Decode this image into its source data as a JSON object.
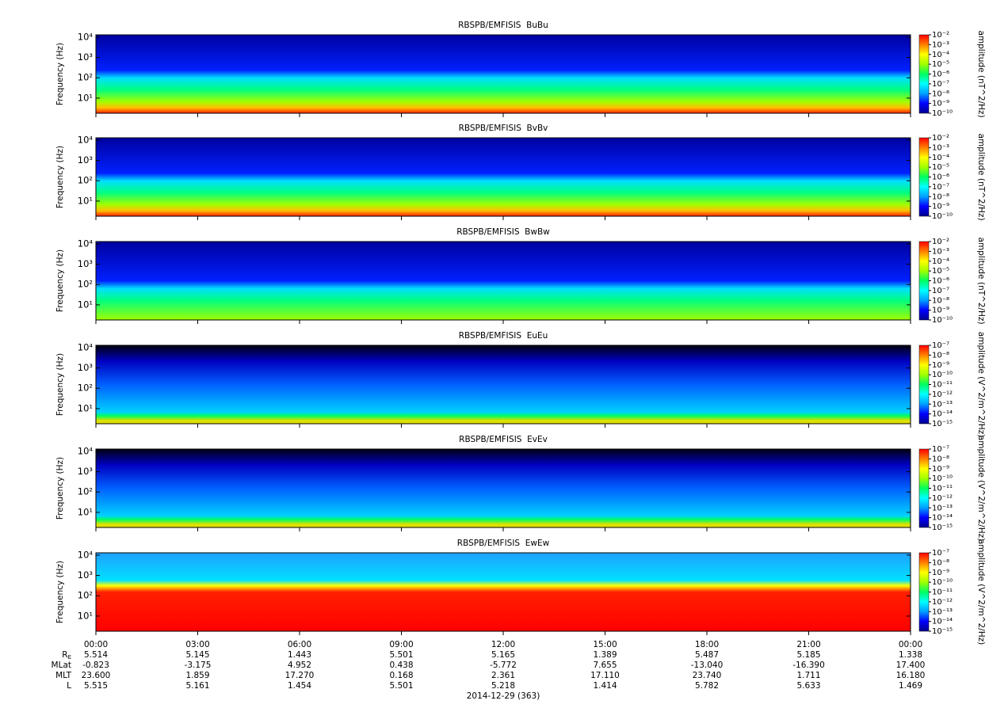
{
  "chart_data": [
    {
      "type": "spectrogram",
      "title": "RBSPB/EMFISIS  BuBu",
      "ylabel": "Frequency (Hz)",
      "log": true,
      "ylim": [
        1.8,
        13000
      ],
      "yticks": [
        {
          "value": 10,
          "label": "10¹"
        },
        {
          "value": 100,
          "label": "10²"
        },
        {
          "value": 1000,
          "label": "10³"
        },
        {
          "value": 10000,
          "label": "10⁴"
        }
      ],
      "colorbar_label": "amplitude (nT^2/Hz)",
      "clim": [
        1e-10,
        0.01
      ],
      "cticks": [
        {
          "value": 1e-10,
          "label": "10⁻¹⁰"
        },
        {
          "value": 1e-09,
          "label": "10⁻⁹"
        },
        {
          "value": 1e-08,
          "label": "10⁻⁸"
        },
        {
          "value": 1e-07,
          "label": "10⁻⁷"
        },
        {
          "value": 1e-06,
          "label": "10⁻⁶"
        },
        {
          "value": 1e-05,
          "label": "10⁻⁵"
        },
        {
          "value": 0.0001,
          "label": "10⁻⁴"
        },
        {
          "value": 0.001,
          "label": "10⁻³"
        },
        {
          "value": 0.01,
          "label": "10⁻²"
        }
      ]
    },
    {
      "type": "spectrogram",
      "title": "RBSPB/EMFISIS  BvBv",
      "ylabel": "Frequency (Hz)",
      "log": true,
      "ylim": [
        1.8,
        13000
      ],
      "yticks": [
        {
          "value": 10,
          "label": "10¹"
        },
        {
          "value": 100,
          "label": "10²"
        },
        {
          "value": 1000,
          "label": "10³"
        },
        {
          "value": 10000,
          "label": "10⁴"
        }
      ],
      "colorbar_label": "amplitude (nT^2/Hz)",
      "clim": [
        1e-10,
        0.01
      ],
      "cticks": [
        {
          "value": 1e-10,
          "label": "10⁻¹⁰"
        },
        {
          "value": 1e-09,
          "label": "10⁻⁹"
        },
        {
          "value": 1e-08,
          "label": "10⁻⁸"
        },
        {
          "value": 1e-07,
          "label": "10⁻⁷"
        },
        {
          "value": 1e-06,
          "label": "10⁻⁶"
        },
        {
          "value": 1e-05,
          "label": "10⁻⁵"
        },
        {
          "value": 0.0001,
          "label": "10⁻⁴"
        },
        {
          "value": 0.001,
          "label": "10⁻³"
        },
        {
          "value": 0.01,
          "label": "10⁻²"
        }
      ]
    },
    {
      "type": "spectrogram",
      "title": "RBSPB/EMFISIS  BwBw",
      "ylabel": "Frequency (Hz)",
      "log": true,
      "ylim": [
        1.8,
        13000
      ],
      "yticks": [
        {
          "value": 10,
          "label": "10¹"
        },
        {
          "value": 100,
          "label": "10²"
        },
        {
          "value": 1000,
          "label": "10³"
        },
        {
          "value": 10000,
          "label": "10⁴"
        }
      ],
      "colorbar_label": "amplitude (nT^2/Hz)",
      "clim": [
        1e-10,
        0.01
      ],
      "cticks": [
        {
          "value": 1e-10,
          "label": "10⁻¹⁰"
        },
        {
          "value": 1e-09,
          "label": "10⁻⁹"
        },
        {
          "value": 1e-08,
          "label": "10⁻⁸"
        },
        {
          "value": 1e-07,
          "label": "10⁻⁷"
        },
        {
          "value": 1e-06,
          "label": "10⁻⁶"
        },
        {
          "value": 1e-05,
          "label": "10⁻⁵"
        },
        {
          "value": 0.0001,
          "label": "10⁻⁴"
        },
        {
          "value": 0.001,
          "label": "10⁻³"
        },
        {
          "value": 0.01,
          "label": "10⁻²"
        }
      ]
    },
    {
      "type": "spectrogram",
      "title": "RBSPB/EMFISIS  EuEu",
      "ylabel": "Frequency (Hz)",
      "log": true,
      "ylim": [
        1.8,
        13000
      ],
      "yticks": [
        {
          "value": 10,
          "label": "10¹"
        },
        {
          "value": 100,
          "label": "10²"
        },
        {
          "value": 1000,
          "label": "10³"
        },
        {
          "value": 10000,
          "label": "10⁴"
        }
      ],
      "colorbar_label": "amplitude (V^2/m^2/Hz)",
      "clim": [
        1e-15,
        1e-07
      ],
      "cticks": [
        {
          "value": 1e-15,
          "label": "10⁻¹⁵"
        },
        {
          "value": 1e-14,
          "label": "10⁻¹⁴"
        },
        {
          "value": 1e-13,
          "label": "10⁻¹³"
        },
        {
          "value": 1e-12,
          "label": "10⁻¹²"
        },
        {
          "value": 1e-11,
          "label": "10⁻¹¹"
        },
        {
          "value": 1e-10,
          "label": "10⁻¹⁰"
        },
        {
          "value": 1e-09,
          "label": "10⁻⁹"
        },
        {
          "value": 1e-08,
          "label": "10⁻⁸"
        },
        {
          "value": 1e-07,
          "label": "10⁻⁷"
        }
      ]
    },
    {
      "type": "spectrogram",
      "title": "RBSPB/EMFISIS  EvEv",
      "ylabel": "Frequency (Hz)",
      "log": true,
      "ylim": [
        1.8,
        13000
      ],
      "yticks": [
        {
          "value": 10,
          "label": "10¹"
        },
        {
          "value": 100,
          "label": "10²"
        },
        {
          "value": 1000,
          "label": "10³"
        },
        {
          "value": 10000,
          "label": "10⁴"
        }
      ],
      "colorbar_label": "amplitude (V^2/m^2/Hz)",
      "clim": [
        1e-15,
        1e-07
      ],
      "cticks": [
        {
          "value": 1e-15,
          "label": "10⁻¹⁵"
        },
        {
          "value": 1e-14,
          "label": "10⁻¹⁴"
        },
        {
          "value": 1e-13,
          "label": "10⁻¹³"
        },
        {
          "value": 1e-12,
          "label": "10⁻¹²"
        },
        {
          "value": 1e-11,
          "label": "10⁻¹¹"
        },
        {
          "value": 1e-10,
          "label": "10⁻¹⁰"
        },
        {
          "value": 1e-09,
          "label": "10⁻⁹"
        },
        {
          "value": 1e-08,
          "label": "10⁻⁸"
        },
        {
          "value": 1e-07,
          "label": "10⁻⁷"
        }
      ]
    },
    {
      "type": "spectrogram",
      "title": "RBSPB/EMFISIS  EwEw",
      "ylabel": "Frequency (Hz)",
      "log": true,
      "ylim": [
        1.8,
        13000
      ],
      "yticks": [
        {
          "value": 10,
          "label": "10¹"
        },
        {
          "value": 100,
          "label": "10²"
        },
        {
          "value": 1000,
          "label": "10³"
        },
        {
          "value": 10000,
          "label": "10⁴"
        }
      ],
      "colorbar_label": "amplitude (V^2/m^2/Hz)",
      "clim": [
        1e-15,
        1e-07
      ],
      "cticks": [
        {
          "value": 1e-15,
          "label": "10⁻¹⁵"
        },
        {
          "value": 1e-14,
          "label": "10⁻¹⁴"
        },
        {
          "value": 1e-13,
          "label": "10⁻¹³"
        },
        {
          "value": 1e-12,
          "label": "10⁻¹²"
        },
        {
          "value": 1e-11,
          "label": "10⁻¹¹"
        },
        {
          "value": 1e-10,
          "label": "10⁻¹⁰"
        },
        {
          "value": 1e-09,
          "label": "10⁻⁹"
        },
        {
          "value": 1e-08,
          "label": "10⁻⁸"
        },
        {
          "value": 1e-07,
          "label": "10⁻⁷"
        }
      ]
    }
  ],
  "colorscale": [
    "#00008f",
    "#0000ff",
    "#00a0ff",
    "#00ffff",
    "#00ff60",
    "#a0ff00",
    "#ffff00",
    "#ff8000",
    "#ff0000"
  ],
  "x_axis": {
    "xlim": [
      0,
      24
    ],
    "xticks": [
      {
        "value": 0,
        "label": "00:00"
      },
      {
        "value": 3,
        "label": "03:00"
      },
      {
        "value": 6,
        "label": "06:00"
      },
      {
        "value": 9,
        "label": "09:00"
      },
      {
        "value": 12,
        "label": "12:00"
      },
      {
        "value": 15,
        "label": "15:00"
      },
      {
        "value": 18,
        "label": "18:00"
      },
      {
        "value": 21,
        "label": "21:00"
      },
      {
        "value": 24,
        "label": "00:00"
      }
    ]
  },
  "ephemeris": [
    {
      "name": "R",
      "name_sub": "E",
      "values": [
        "5.514",
        "5.145",
        "1.443",
        "5.501",
        "5.165",
        "1.389",
        "5.487",
        "5.185",
        "1.338"
      ]
    },
    {
      "name": "MLat",
      "values": [
        "-0.823",
        "-3.175",
        "4.952",
        "0.438",
        "-5.772",
        "7.655",
        "-13.040",
        "-16.390",
        "17.400"
      ]
    },
    {
      "name": "MLT",
      "values": [
        "23.600",
        "1.859",
        "17.270",
        "0.168",
        "2.361",
        "17.110",
        "23.740",
        "1.711",
        "16.180"
      ]
    },
    {
      "name": "L",
      "values": [
        "5.515",
        "5.161",
        "1.454",
        "5.501",
        "5.218",
        "1.414",
        "5.782",
        "5.633",
        "1.469"
      ]
    }
  ],
  "date": "2014-12-29 (363)"
}
